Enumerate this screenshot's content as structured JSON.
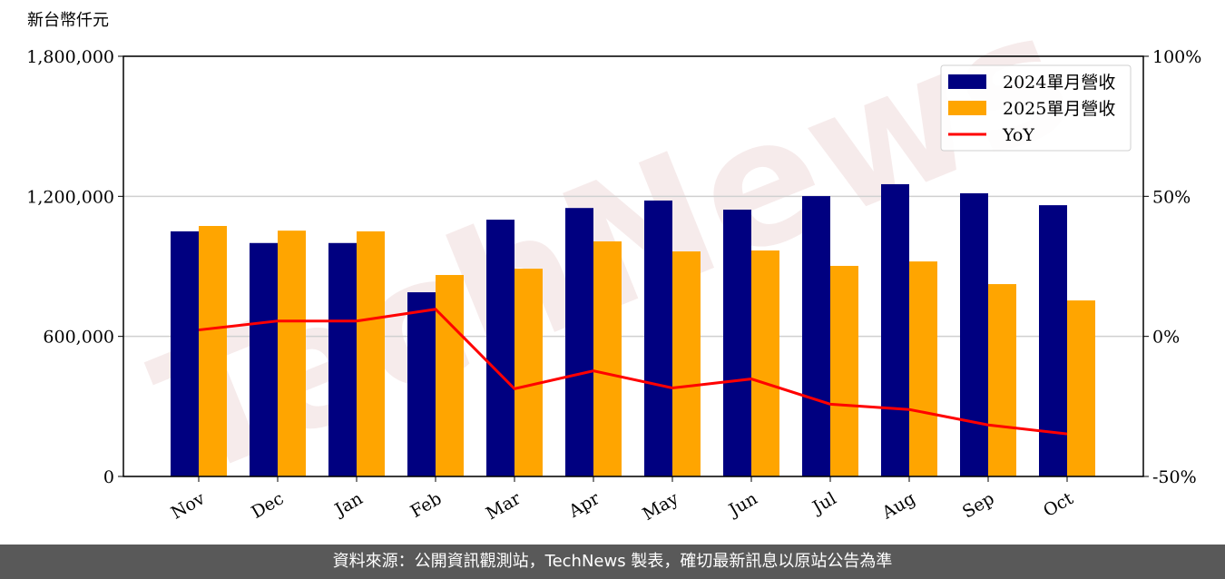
{
  "chart_data": {
    "type": "bar",
    "y_axis_label": "新台幣仟元",
    "watermark": "TechNews",
    "categories": [
      "Nov",
      "Dec",
      "Jan",
      "Feb",
      "Mar",
      "Apr",
      "May",
      "Jun",
      "Jul",
      "Aug",
      "Sep",
      "Oct"
    ],
    "series": [
      {
        "name": "2024單月營收",
        "color": "#000080",
        "type": "bar",
        "values": [
          1050000,
          1000000,
          1000000,
          789000,
          1100000,
          1150000,
          1182000,
          1143000,
          1201000,
          1252000,
          1213000,
          1162000
        ]
      },
      {
        "name": "2025單月營收",
        "color": "#ffa500",
        "type": "bar",
        "values": [
          1073000,
          1053000,
          1050000,
          863000,
          890000,
          1007000,
          964000,
          968000,
          902000,
          921000,
          824000,
          754000
        ]
      },
      {
        "name": "YoY",
        "color": "#ff0000",
        "type": "line",
        "axis": "y2",
        "values": [
          2.3,
          5.5,
          5.5,
          9.7,
          -18.7,
          -12.3,
          -18.4,
          -15.2,
          -24.2,
          -26.1,
          -31.6,
          -34.8
        ]
      }
    ],
    "ylim": [
      0,
      1800000
    ],
    "yticks": [
      0,
      {
        "value": 600000,
        "label": "600,000"
      },
      {
        "value": 1200000,
        "label": "1,200,000"
      },
      {
        "value": 1800000,
        "label": "1,800,000"
      }
    ],
    "y2lim": [
      -50,
      100
    ],
    "y2ticks": [
      {
        "value": -50,
        "label": "-50%"
      },
      {
        "value": 0,
        "label": "0%"
      },
      {
        "value": 50,
        "label": "50%"
      },
      {
        "value": 100,
        "label": "100%"
      }
    ],
    "grid": true,
    "legend": "upper right"
  },
  "footer": "資料來源：公開資訊觀測站，TechNews 製表，確切最新訊息以原站公告為準"
}
